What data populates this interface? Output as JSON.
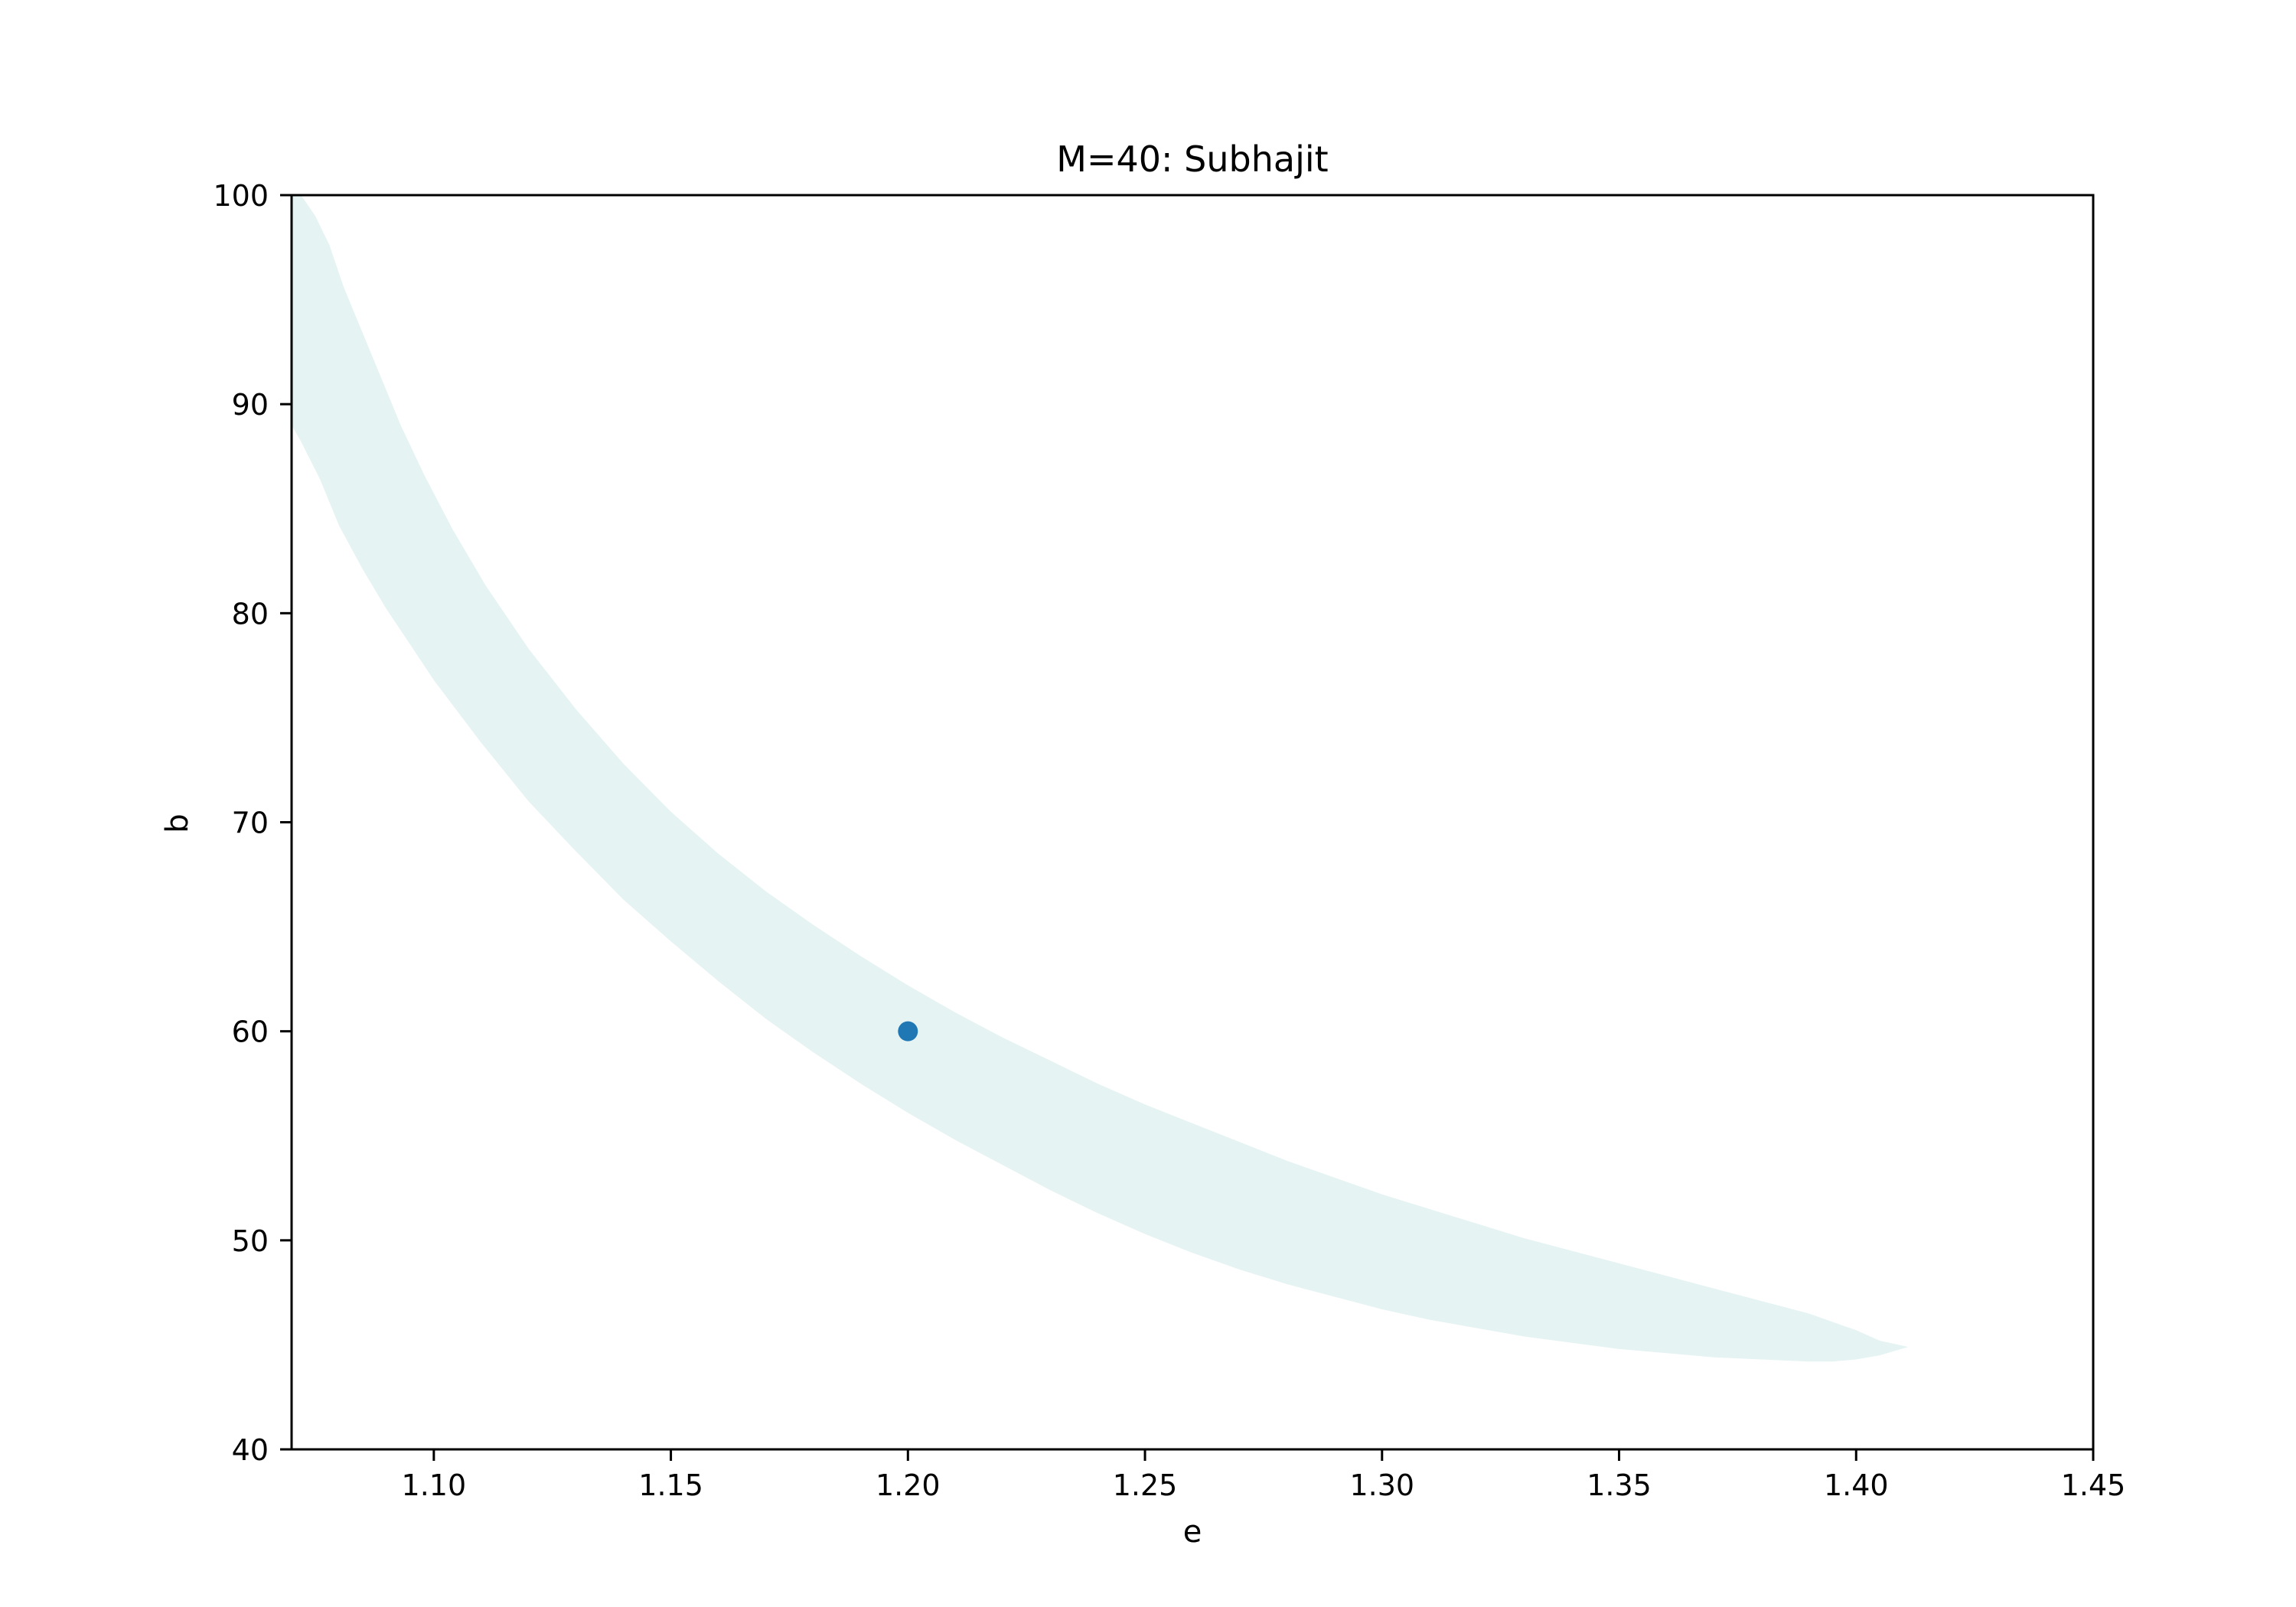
{
  "chart_data": {
    "type": "area",
    "title": "M=40: Subhajit",
    "xlabel": "e",
    "ylabel": "b",
    "xlim": [
      1.07,
      1.45
    ],
    "ylim": [
      40,
      100
    ],
    "xticks": [
      1.1,
      1.15,
      1.2,
      1.25,
      1.3,
      1.35,
      1.4,
      1.45
    ],
    "xtick_labels": [
      "1.10",
      "1.15",
      "1.20",
      "1.25",
      "1.30",
      "1.35",
      "1.40",
      "1.45"
    ],
    "yticks": [
      40,
      50,
      60,
      70,
      80,
      90,
      100
    ],
    "ytick_labels": [
      "40",
      "50",
      "60",
      "70",
      "80",
      "90",
      "100"
    ],
    "grid": false,
    "colors": {
      "region": "#e6f3f3",
      "point": "#1f77b4"
    },
    "region": {
      "upper": [
        [
          1.07,
          100.0
        ],
        [
          1.072,
          100.0
        ],
        [
          1.075,
          99.0
        ],
        [
          1.078,
          97.6
        ],
        [
          1.081,
          95.6
        ],
        [
          1.085,
          93.4
        ],
        [
          1.089,
          91.2
        ],
        [
          1.093,
          89.0
        ],
        [
          1.098,
          86.6
        ],
        [
          1.104,
          84.0
        ],
        [
          1.111,
          81.3
        ],
        [
          1.12,
          78.3
        ],
        [
          1.13,
          75.4
        ],
        [
          1.14,
          72.8
        ],
        [
          1.15,
          70.5
        ],
        [
          1.16,
          68.5
        ],
        [
          1.17,
          66.7
        ],
        [
          1.18,
          65.1
        ],
        [
          1.19,
          63.6
        ],
        [
          1.2,
          62.2
        ],
        [
          1.21,
          60.9
        ],
        [
          1.22,
          59.7
        ],
        [
          1.23,
          58.6
        ],
        [
          1.24,
          57.5
        ],
        [
          1.25,
          56.5
        ],
        [
          1.26,
          55.6
        ],
        [
          1.27,
          54.7
        ],
        [
          1.28,
          53.8
        ],
        [
          1.29,
          53.0
        ],
        [
          1.3,
          52.2
        ],
        [
          1.31,
          51.5
        ],
        [
          1.32,
          50.8
        ],
        [
          1.33,
          50.1
        ],
        [
          1.34,
          49.5
        ],
        [
          1.35,
          48.9
        ],
        [
          1.36,
          48.3
        ],
        [
          1.37,
          47.7
        ],
        [
          1.38,
          47.1
        ],
        [
          1.39,
          46.5
        ],
        [
          1.395,
          46.1
        ],
        [
          1.4,
          45.7
        ],
        [
          1.405,
          45.2
        ],
        [
          1.411,
          44.9
        ]
      ],
      "lower": [
        [
          1.411,
          44.9
        ],
        [
          1.405,
          44.5
        ],
        [
          1.4,
          44.3
        ],
        [
          1.395,
          44.2
        ],
        [
          1.39,
          44.2
        ],
        [
          1.38,
          44.3
        ],
        [
          1.37,
          44.4
        ],
        [
          1.36,
          44.6
        ],
        [
          1.35,
          44.8
        ],
        [
          1.34,
          45.1
        ],
        [
          1.33,
          45.4
        ],
        [
          1.32,
          45.8
        ],
        [
          1.31,
          46.2
        ],
        [
          1.3,
          46.7
        ],
        [
          1.29,
          47.3
        ],
        [
          1.28,
          47.9
        ],
        [
          1.27,
          48.6
        ],
        [
          1.26,
          49.4
        ],
        [
          1.25,
          50.3
        ],
        [
          1.24,
          51.3
        ],
        [
          1.23,
          52.4
        ],
        [
          1.22,
          53.6
        ],
        [
          1.21,
          54.8
        ],
        [
          1.2,
          56.1
        ],
        [
          1.19,
          57.5
        ],
        [
          1.18,
          59.0
        ],
        [
          1.17,
          60.6
        ],
        [
          1.16,
          62.4
        ],
        [
          1.15,
          64.3
        ],
        [
          1.14,
          66.3
        ],
        [
          1.13,
          68.6
        ],
        [
          1.12,
          71.0
        ],
        [
          1.11,
          73.8
        ],
        [
          1.1,
          76.8
        ],
        [
          1.095,
          78.5
        ],
        [
          1.09,
          80.2
        ],
        [
          1.085,
          82.1
        ],
        [
          1.08,
          84.2
        ],
        [
          1.076,
          86.4
        ],
        [
          1.072,
          88.2
        ],
        [
          1.07,
          89.0
        ]
      ]
    },
    "points": [
      {
        "x": 1.2,
        "y": 60
      }
    ]
  }
}
